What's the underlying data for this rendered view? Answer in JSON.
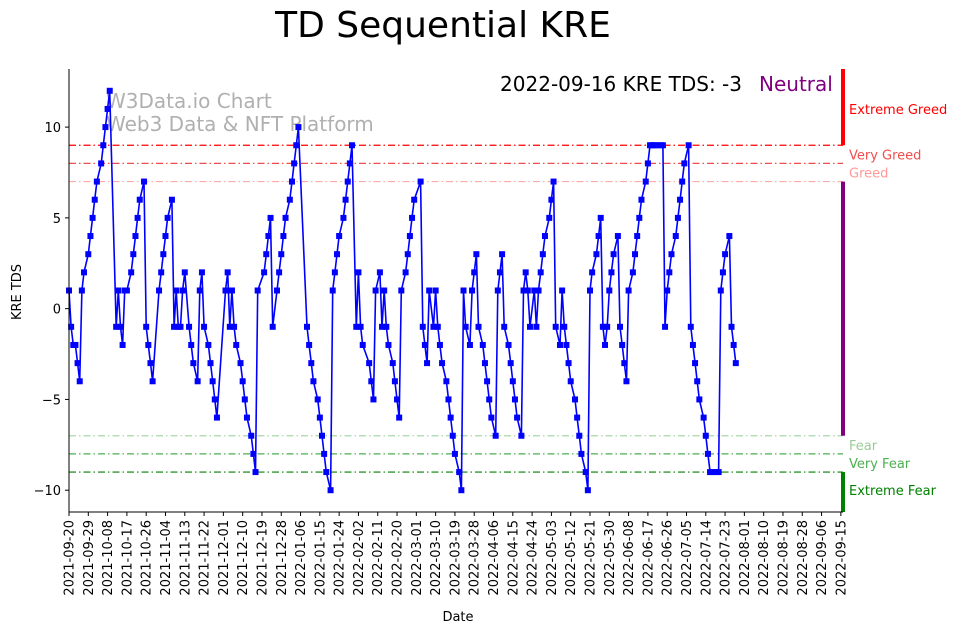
{
  "chart_data": {
    "type": "line",
    "title": "TD Sequential KRE",
    "xlabel": "Date",
    "ylabel": "KRE TDS",
    "ylim": [
      -11.2,
      13.2
    ],
    "y_ticks": [
      -10,
      -5,
      0,
      5,
      10
    ],
    "x_tick_labels": [
      "2021-09-20",
      "2021-09-29",
      "2021-10-08",
      "2021-10-17",
      "2021-10-26",
      "2021-11-04",
      "2021-11-13",
      "2021-11-22",
      "2021-12-01",
      "2021-12-10",
      "2021-12-19",
      "2021-12-28",
      "2022-01-06",
      "2022-01-15",
      "2022-01-24",
      "2022-02-02",
      "2022-02-11",
      "2022-02-20",
      "2022-03-01",
      "2022-03-10",
      "2022-03-19",
      "2022-03-28",
      "2022-04-06",
      "2022-04-15",
      "2022-04-24",
      "2022-05-03",
      "2022-05-12",
      "2022-05-21",
      "2022-05-30",
      "2022-06-08",
      "2022-06-17",
      "2022-06-26",
      "2022-07-05",
      "2022-07-14",
      "2022-07-23",
      "2022-08-01",
      "2022-08-10",
      "2022-08-19",
      "2022-08-28",
      "2022-09-06",
      "2022-09-15"
    ],
    "x_start": "2021-09-20",
    "x_end": "2022-09-16",
    "series": [
      {
        "name": "KRE TDS",
        "color": "#0000ff",
        "points": [
          [
            0,
            1
          ],
          [
            1,
            -1
          ],
          [
            2,
            -2
          ],
          [
            3,
            -2
          ],
          [
            4,
            -3
          ],
          [
            5,
            -4
          ],
          [
            6,
            1
          ],
          [
            7,
            2
          ],
          [
            9,
            3
          ],
          [
            10,
            4
          ],
          [
            11,
            5
          ],
          [
            12,
            6
          ],
          [
            13,
            7
          ],
          [
            15,
            8
          ],
          [
            16,
            9
          ],
          [
            17,
            10
          ],
          [
            18,
            11
          ],
          [
            19,
            12
          ],
          [
            22,
            -1
          ],
          [
            23,
            1
          ],
          [
            24,
            -1
          ],
          [
            25,
            -2
          ],
          [
            26,
            1
          ],
          [
            27,
            1
          ],
          [
            29,
            2
          ],
          [
            30,
            3
          ],
          [
            31,
            4
          ],
          [
            32,
            5
          ],
          [
            33,
            6
          ],
          [
            35,
            7
          ],
          [
            36,
            -1
          ],
          [
            37,
            -2
          ],
          [
            38,
            -3
          ],
          [
            39,
            -4
          ],
          [
            42,
            1
          ],
          [
            43,
            2
          ],
          [
            44,
            3
          ],
          [
            45,
            4
          ],
          [
            46,
            5
          ],
          [
            48,
            6
          ],
          [
            49,
            -1
          ],
          [
            50,
            1
          ],
          [
            51,
            -1
          ],
          [
            52,
            -1
          ],
          [
            53,
            1
          ],
          [
            54,
            2
          ],
          [
            56,
            -1
          ],
          [
            57,
            -2
          ],
          [
            58,
            -3
          ],
          [
            60,
            -4
          ],
          [
            61,
            1
          ],
          [
            62,
            2
          ],
          [
            63,
            -1
          ],
          [
            65,
            -2
          ],
          [
            66,
            -3
          ],
          [
            67,
            -4
          ],
          [
            68,
            -5
          ],
          [
            69,
            -6
          ],
          [
            73,
            1
          ],
          [
            74,
            2
          ],
          [
            75,
            -1
          ],
          [
            76,
            1
          ],
          [
            77,
            -1
          ],
          [
            78,
            -2
          ],
          [
            80,
            -3
          ],
          [
            81,
            -4
          ],
          [
            82,
            -5
          ],
          [
            83,
            -6
          ],
          [
            85,
            -7
          ],
          [
            86,
            -8
          ],
          [
            87,
            -9
          ],
          [
            88,
            1
          ],
          [
            91,
            2
          ],
          [
            92,
            3
          ],
          [
            93,
            4
          ],
          [
            94,
            5
          ],
          [
            95,
            -1
          ],
          [
            97,
            1
          ],
          [
            98,
            2
          ],
          [
            99,
            3
          ],
          [
            100,
            4
          ],
          [
            101,
            5
          ],
          [
            103,
            6
          ],
          [
            104,
            7
          ],
          [
            105,
            8
          ],
          [
            106,
            9
          ],
          [
            107,
            10
          ],
          [
            111,
            -1
          ],
          [
            112,
            -2
          ],
          [
            113,
            -3
          ],
          [
            114,
            -4
          ],
          [
            116,
            -5
          ],
          [
            117,
            -6
          ],
          [
            118,
            -7
          ],
          [
            119,
            -8
          ],
          [
            120,
            -9
          ],
          [
            122,
            -10
          ],
          [
            123,
            1
          ],
          [
            124,
            2
          ],
          [
            125,
            3
          ],
          [
            126,
            4
          ],
          [
            128,
            5
          ],
          [
            129,
            6
          ],
          [
            130,
            7
          ],
          [
            131,
            8
          ],
          [
            132,
            9
          ],
          [
            134,
            -1
          ],
          [
            135,
            2
          ],
          [
            136,
            -1
          ],
          [
            137,
            -2
          ],
          [
            140,
            -3
          ],
          [
            141,
            -4
          ],
          [
            142,
            -5
          ],
          [
            143,
            1
          ],
          [
            145,
            2
          ],
          [
            146,
            -1
          ],
          [
            147,
            1
          ],
          [
            148,
            -1
          ],
          [
            149,
            -2
          ],
          [
            151,
            -3
          ],
          [
            152,
            -4
          ],
          [
            153,
            -5
          ],
          [
            154,
            -6
          ],
          [
            155,
            1
          ],
          [
            157,
            2
          ],
          [
            158,
            3
          ],
          [
            159,
            4
          ],
          [
            160,
            5
          ],
          [
            161,
            6
          ],
          [
            164,
            7
          ],
          [
            165,
            -1
          ],
          [
            166,
            -2
          ],
          [
            167,
            -3
          ],
          [
            168,
            1
          ],
          [
            170,
            -1
          ],
          [
            171,
            1
          ],
          [
            172,
            -1
          ],
          [
            173,
            -2
          ],
          [
            174,
            -3
          ],
          [
            176,
            -4
          ],
          [
            177,
            -5
          ],
          [
            178,
            -6
          ],
          [
            179,
            -7
          ],
          [
            180,
            -8
          ],
          [
            182,
            -9
          ],
          [
            183,
            -10
          ],
          [
            184,
            1
          ],
          [
            185,
            -1
          ],
          [
            187,
            -2
          ],
          [
            188,
            1
          ],
          [
            189,
            2
          ],
          [
            190,
            3
          ],
          [
            191,
            -1
          ],
          [
            193,
            -2
          ],
          [
            194,
            -3
          ],
          [
            195,
            -4
          ],
          [
            196,
            -5
          ],
          [
            197,
            -6
          ],
          [
            199,
            -7
          ],
          [
            200,
            1
          ],
          [
            201,
            2
          ],
          [
            202,
            3
          ],
          [
            203,
            -1
          ],
          [
            205,
            -2
          ],
          [
            206,
            -3
          ],
          [
            207,
            -4
          ],
          [
            208,
            -5
          ],
          [
            209,
            -6
          ],
          [
            211,
            -7
          ],
          [
            212,
            1
          ],
          [
            213,
            2
          ],
          [
            214,
            1
          ],
          [
            215,
            -1
          ],
          [
            217,
            1
          ],
          [
            218,
            -1
          ],
          [
            219,
            1
          ],
          [
            220,
            2
          ],
          [
            221,
            3
          ],
          [
            222,
            4
          ],
          [
            224,
            5
          ],
          [
            225,
            6
          ],
          [
            226,
            7
          ],
          [
            227,
            -1
          ],
          [
            229,
            -2
          ],
          [
            230,
            1
          ],
          [
            231,
            -1
          ],
          [
            232,
            -2
          ],
          [
            233,
            -3
          ],
          [
            234,
            -4
          ],
          [
            236,
            -5
          ],
          [
            237,
            -6
          ],
          [
            238,
            -7
          ],
          [
            239,
            -8
          ],
          [
            241,
            -9
          ],
          [
            242,
            -10
          ],
          [
            243,
            1
          ],
          [
            244,
            2
          ],
          [
            246,
            3
          ],
          [
            247,
            4
          ],
          [
            248,
            5
          ],
          [
            249,
            -1
          ],
          [
            250,
            -2
          ],
          [
            251,
            -1
          ],
          [
            252,
            1
          ],
          [
            253,
            2
          ],
          [
            254,
            3
          ],
          [
            256,
            4
          ],
          [
            257,
            -1
          ],
          [
            258,
            -2
          ],
          [
            259,
            -3
          ],
          [
            260,
            -4
          ],
          [
            261,
            1
          ],
          [
            263,
            2
          ],
          [
            264,
            3
          ],
          [
            265,
            4
          ],
          [
            266,
            5
          ],
          [
            267,
            6
          ],
          [
            269,
            7
          ],
          [
            270,
            8
          ],
          [
            271,
            9
          ],
          [
            272,
            9
          ],
          [
            273,
            9
          ],
          [
            274,
            9
          ],
          [
            276,
            9
          ],
          [
            277,
            9
          ],
          [
            278,
            -1
          ],
          [
            279,
            1
          ],
          [
            280,
            2
          ],
          [
            281,
            3
          ],
          [
            283,
            4
          ],
          [
            284,
            5
          ],
          [
            285,
            6
          ],
          [
            286,
            7
          ],
          [
            287,
            8
          ],
          [
            289,
            9
          ],
          [
            290,
            -1
          ],
          [
            291,
            -2
          ],
          [
            292,
            -3
          ],
          [
            293,
            -4
          ],
          [
            294,
            -5
          ],
          [
            296,
            -6
          ],
          [
            297,
            -7
          ],
          [
            298,
            -8
          ],
          [
            299,
            -9
          ],
          [
            300,
            -9
          ],
          [
            302,
            -9
          ],
          [
            303,
            -9
          ],
          [
            304,
            1
          ],
          [
            305,
            2
          ],
          [
            306,
            3
          ],
          [
            308,
            4
          ],
          [
            309,
            -1
          ],
          [
            310,
            -2
          ],
          [
            311,
            -3
          ]
        ]
      }
    ],
    "reference_lines": [
      {
        "label": "Extreme Greed",
        "y": 9,
        "color": "#ff0000",
        "label_color": "#ff0000",
        "label_y": 11
      },
      {
        "label": "Very Greed",
        "y": 8,
        "color": "#f04e4e",
        "label_color": "#f04e4e",
        "label_y": 8.5
      },
      {
        "label": "Greed",
        "y": 7,
        "color": "#ffaaaa",
        "label_color": "#ff9999",
        "label_y": 7.5
      },
      {
        "label": "Fear",
        "y": -7,
        "color": "#a8d8a8",
        "label_color": "#99cc99",
        "label_y": -7.5
      },
      {
        "label": "Very Fear",
        "y": -8,
        "color": "#4caf50",
        "label_color": "#4caf50",
        "label_y": -8.5
      },
      {
        "label": "Extreme Fear",
        "y": -9,
        "color": "#008000",
        "label_color": "#008000",
        "label_y": -10
      }
    ],
    "side_bar": [
      {
        "from": 9,
        "to": 13.2,
        "color": "#ff0000"
      },
      {
        "from": -7,
        "to": 7,
        "color": "#800080"
      },
      {
        "from": -11.2,
        "to": -9,
        "color": "#008000"
      }
    ],
    "annotation": {
      "text": "2022-09-16 KRE TDS: -3",
      "status": "Neutral",
      "status_color": "#800080"
    },
    "watermark": [
      "W3Data.io Chart",
      "Web3 Data & NFT Platform"
    ]
  }
}
